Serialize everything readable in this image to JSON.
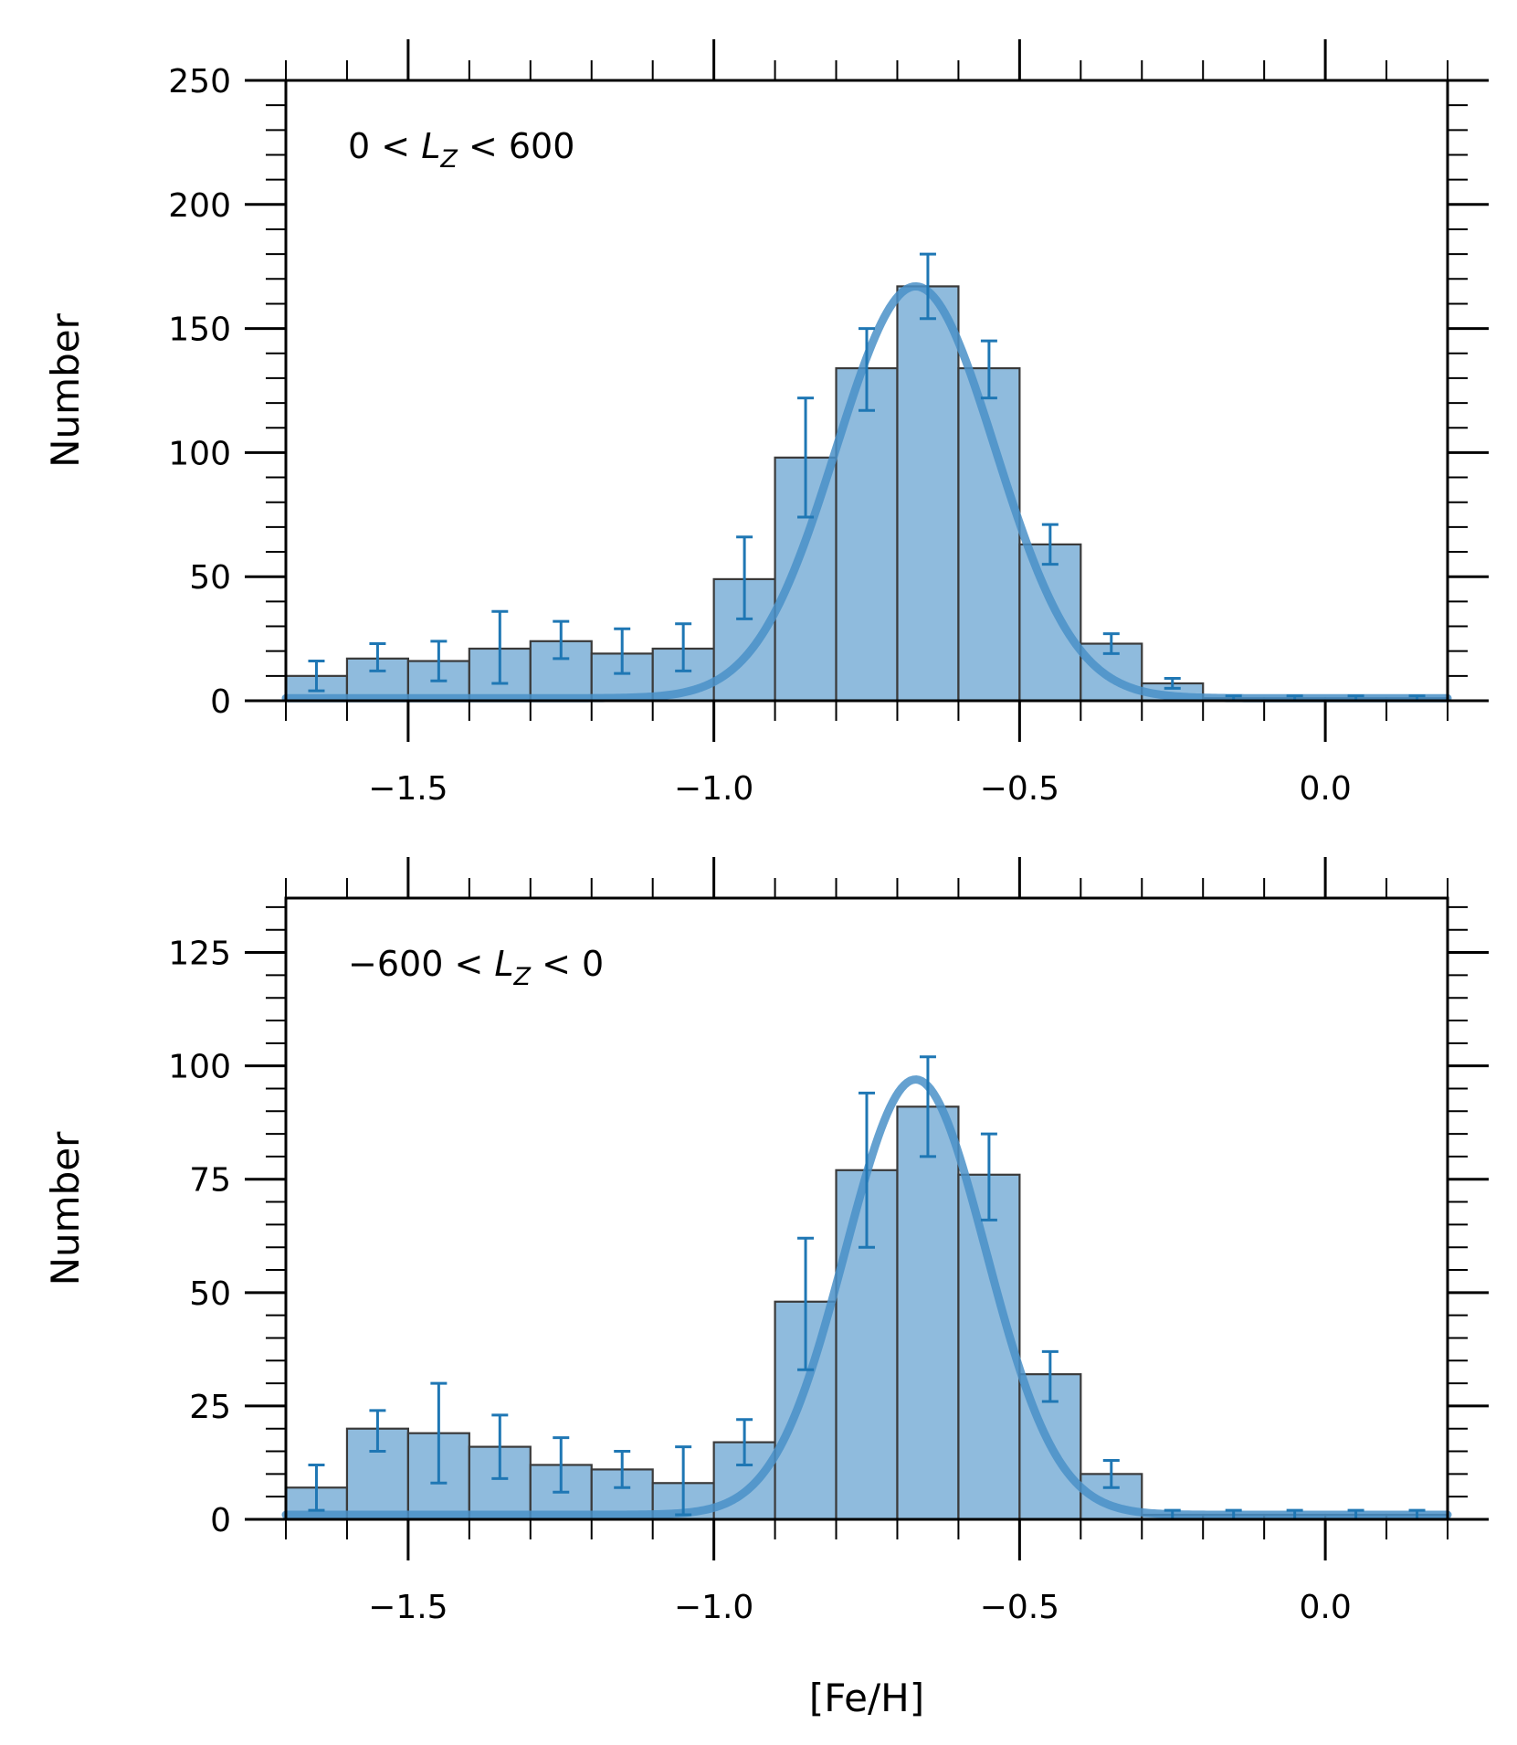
{
  "chart_data": [
    {
      "type": "bar",
      "annotation": "0 < L_Z < 600",
      "annotation_parts": {
        "left": "0 <",
        "sym": "L",
        "sub": "Z",
        "right": "< 600"
      },
      "xlabel": "",
      "ylabel": "Number",
      "xlim": [
        -1.7,
        0.2
      ],
      "ylim": [
        0,
        250
      ],
      "x_ticks": [
        -1.5,
        -1.0,
        -0.5,
        0.0
      ],
      "x_tick_labels": [
        "−1.5",
        "−1.0",
        "−0.5",
        "0.0"
      ],
      "y_ticks": [
        0,
        50,
        100,
        150,
        200,
        250
      ],
      "y_tick_labels": [
        "0",
        "50",
        "100",
        "150",
        "200",
        "250"
      ],
      "y_minor_step": 10,
      "bin_width": 0.1,
      "bin_centers": [
        -1.65,
        -1.55,
        -1.45,
        -1.35,
        -1.25,
        -1.15,
        -1.05,
        -0.95,
        -0.85,
        -0.75,
        -0.65,
        -0.55,
        -0.45,
        -0.35,
        -0.25,
        -0.15,
        -0.05,
        0.05,
        0.15
      ],
      "counts": [
        10,
        17,
        16,
        21,
        24,
        19,
        21,
        49,
        98,
        134,
        167,
        134,
        63,
        23,
        7,
        1,
        1,
        1,
        1
      ],
      "errors": [
        [
          4,
          16
        ],
        [
          12,
          23
        ],
        [
          8,
          24
        ],
        [
          7,
          36
        ],
        [
          17,
          32
        ],
        [
          11,
          29
        ],
        [
          12,
          31
        ],
        [
          33,
          66
        ],
        [
          74,
          122
        ],
        [
          117,
          150
        ],
        [
          154,
          180
        ],
        [
          122,
          145
        ],
        [
          55,
          71
        ],
        [
          19,
          27
        ],
        [
          5,
          9
        ],
        [
          0,
          2
        ],
        [
          0,
          2
        ],
        [
          0,
          2
        ],
        [
          0,
          2
        ]
      ],
      "fit": {
        "type": "gaussian",
        "amplitude": 166,
        "mean": -0.67,
        "sigma": 0.13,
        "baseline": 1
      }
    },
    {
      "type": "bar",
      "annotation": "−600 < L_Z < 0",
      "annotation_parts": {
        "left": "−600 <",
        "sym": "L",
        "sub": "Z",
        "right": "< 0"
      },
      "xlabel": "[Fe/H]",
      "ylabel": "Number",
      "xlim": [
        -1.7,
        0.2
      ],
      "ylim": [
        0,
        137
      ],
      "x_ticks": [
        -1.5,
        -1.0,
        -0.5,
        0.0
      ],
      "x_tick_labels": [
        "−1.5",
        "−1.0",
        "−0.5",
        "0.0"
      ],
      "y_ticks": [
        0,
        25,
        50,
        75,
        100,
        125
      ],
      "y_tick_labels": [
        "0",
        "25",
        "50",
        "75",
        "100",
        "125"
      ],
      "y_minor_step": 5,
      "bin_width": 0.1,
      "bin_centers": [
        -1.65,
        -1.55,
        -1.45,
        -1.35,
        -1.25,
        -1.15,
        -1.05,
        -0.95,
        -0.85,
        -0.75,
        -0.65,
        -0.55,
        -0.45,
        -0.35,
        -0.25,
        -0.15,
        -0.05,
        0.05,
        0.15
      ],
      "counts": [
        7,
        20,
        19,
        16,
        12,
        11,
        8,
        17,
        48,
        77,
        91,
        76,
        32,
        10,
        1,
        1,
        1,
        1,
        1
      ],
      "errors": [
        [
          2,
          12
        ],
        [
          15,
          24
        ],
        [
          8,
          30
        ],
        [
          9,
          23
        ],
        [
          6,
          18
        ],
        [
          7,
          15
        ],
        [
          1,
          16
        ],
        [
          12,
          22
        ],
        [
          33,
          62
        ],
        [
          60,
          94
        ],
        [
          80,
          102
        ],
        [
          66,
          85
        ],
        [
          26,
          37
        ],
        [
          7,
          13
        ],
        [
          0,
          2
        ],
        [
          0,
          2
        ],
        [
          0,
          2
        ],
        [
          0,
          2
        ],
        [
          0,
          2
        ]
      ],
      "fit": {
        "type": "gaussian",
        "amplitude": 96,
        "mean": -0.67,
        "sigma": 0.115,
        "baseline": 1
      }
    }
  ],
  "colors": {
    "bar_fill": "#8fbbdd",
    "bar_edge": "#3a3a3a",
    "fit_line": "#4a90c8",
    "error_bar": "#1f77b4",
    "axis": "#000000"
  }
}
